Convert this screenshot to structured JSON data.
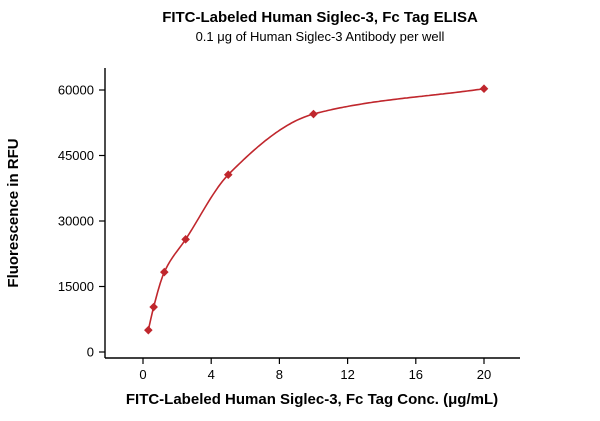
{
  "chart_data": {
    "type": "scatter",
    "title": "FITC-Labeled Human Siglec-3, Fc Tag ELISA",
    "subtitle": "0.1 μg of Human Siglec-3 Antibody per well",
    "xlabel": "FITC-Labeled Human Siglec-3, Fc Tag Conc. (μg/mL)",
    "ylabel": "Fluorescence in RFU",
    "x": [
      0.3125,
      0.625,
      1.25,
      2.5,
      5,
      10,
      20
    ],
    "y": [
      5000,
      10300,
      18300,
      25800,
      40600,
      54500,
      60300
    ],
    "curve": "4PL-style smooth fit through points",
    "marker": "diamond",
    "color": "#c0272d",
    "axis_color": "#000000",
    "xlim": [
      0,
      20
    ],
    "ylim": [
      0,
      60000
    ],
    "xticks": [
      0,
      4,
      8,
      12,
      16,
      20
    ],
    "yticks": [
      0,
      15000,
      30000,
      45000,
      60000
    ],
    "grid": false,
    "legend": "none"
  }
}
